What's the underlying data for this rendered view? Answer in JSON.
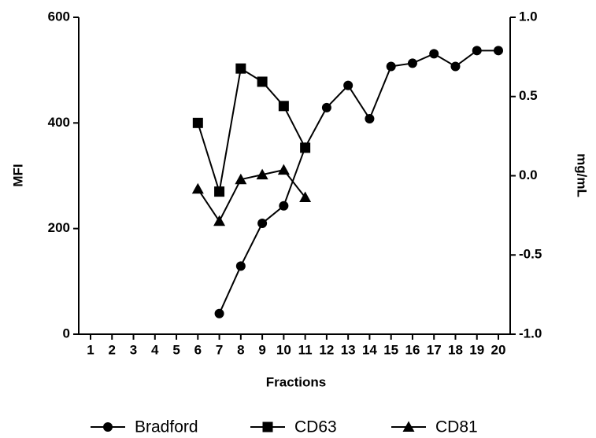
{
  "chart_data": {
    "type": "line",
    "xlabel": "Fractions",
    "ylabel": "MFI",
    "y2label": "mg/mL",
    "x": [
      1,
      2,
      3,
      4,
      5,
      6,
      7,
      8,
      9,
      10,
      11,
      12,
      13,
      14,
      15,
      16,
      17,
      18,
      19,
      20
    ],
    "xlim": [
      0.45,
      20.55
    ],
    "ylim": [
      0,
      600
    ],
    "yticks": [
      0,
      200,
      400,
      600
    ],
    "y2lim": [
      -1,
      1
    ],
    "y2ticks": [
      {
        "value": 1,
        "label": "1.0"
      },
      0.5,
      {
        "value": 0,
        "label": "0.0"
      },
      -0.5,
      {
        "value": -1,
        "label": "-1.0"
      }
    ],
    "legend": "bottom",
    "series": [
      {
        "name": "Bradford",
        "color": "#000000",
        "marker": "circle",
        "axis": "y2",
        "values": [
          null,
          null,
          null,
          null,
          null,
          null,
          -0.87,
          -0.57,
          -0.3,
          -0.19,
          0.18,
          0.43,
          0.57,
          0.36,
          0.69,
          0.71,
          0.77,
          0.69,
          0.79,
          0.79
        ]
      },
      {
        "name": "CD63",
        "color": "#000000",
        "marker": "square",
        "values": [
          null,
          null,
          null,
          null,
          null,
          400,
          270,
          503,
          478,
          432,
          353,
          null,
          null,
          null,
          null,
          null,
          null,
          null,
          null,
          null
        ]
      },
      {
        "name": "CD81",
        "color": "#000000",
        "marker": "triangle",
        "values": [
          null,
          null,
          null,
          null,
          null,
          275,
          214,
          293,
          302,
          311,
          259,
          null,
          null,
          null,
          null,
          null,
          null,
          null,
          null,
          null
        ]
      }
    ]
  }
}
